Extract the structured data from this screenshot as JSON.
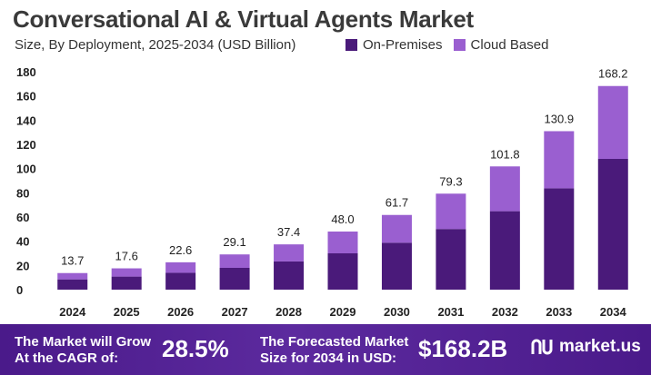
{
  "header": {
    "title": "Conversational AI & Virtual Agents Market",
    "subtitle": "Size, By Deployment, 2025-2034 (USD Billion)"
  },
  "legend": [
    {
      "label": "On-Premises",
      "color": "#4a1a7a"
    },
    {
      "label": "Cloud Based",
      "color": "#9a5fd0"
    }
  ],
  "chart_data": {
    "type": "bar",
    "stacked": true,
    "categories": [
      "2024",
      "2025",
      "2026",
      "2027",
      "2028",
      "2029",
      "2030",
      "2031",
      "2032",
      "2033",
      "2034"
    ],
    "series": [
      {
        "name": "On-Premises",
        "color": "#4a1a7a",
        "values": [
          8.5,
          10.8,
          13.9,
          18.0,
          23.3,
          30.0,
          38.8,
          50.1,
          64.8,
          83.7,
          108.0
        ]
      },
      {
        "name": "Cloud Based",
        "color": "#9a5fd0",
        "values": [
          5.2,
          6.8,
          8.7,
          11.1,
          14.1,
          18.0,
          22.9,
          29.2,
          37.0,
          47.2,
          60.2
        ]
      }
    ],
    "totals_labels": [
      "13.7",
      "17.6",
      "22.6",
      "29.1",
      "37.4",
      "48.0",
      "61.7",
      "79.3",
      "101.8",
      "130.9",
      "168.2"
    ],
    "yticks": [
      0,
      20,
      40,
      60,
      80,
      100,
      120,
      140,
      160,
      180
    ],
    "ylim": [
      0,
      180
    ],
    "grid": false
  },
  "footer": {
    "cagr_text_1": "The Market will Grow",
    "cagr_text_2": "At the CAGR of:",
    "cagr_value": "28.5%",
    "forecast_text_1": "The Forecasted Market",
    "forecast_text_2": "Size for 2034 in USD:",
    "forecast_value": "$168.2B",
    "brand": "market.us",
    "brand_icon": "market-us-logo-icon"
  }
}
